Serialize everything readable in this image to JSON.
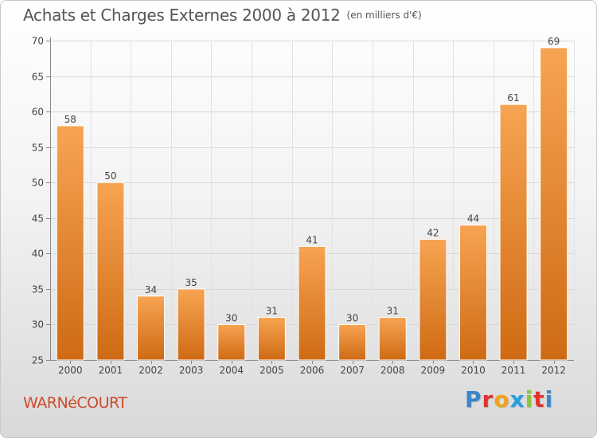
{
  "chart_data": {
    "type": "bar",
    "title": "Achats et Charges Externes 2000 à 2012",
    "unit_label": "(en milliers d'€)",
    "categories": [
      "2000",
      "2001",
      "2002",
      "2003",
      "2004",
      "2005",
      "2006",
      "2007",
      "2008",
      "2009",
      "2010",
      "2011",
      "2012"
    ],
    "values": [
      58,
      50,
      34,
      35,
      30,
      31,
      41,
      30,
      31,
      42,
      44,
      61,
      69
    ],
    "ylim": [
      25,
      70
    ],
    "yticks": [
      25,
      30,
      35,
      40,
      45,
      50,
      55,
      60,
      65,
      70
    ],
    "xlabel": "",
    "ylabel": "",
    "grid": true,
    "bar_color": "#f08c2e"
  },
  "footer": {
    "town": "WARNéCOURT",
    "brand_letters": [
      {
        "ch": "P",
        "color": "#3a86c8"
      },
      {
        "ch": "r",
        "color": "#e0342c"
      },
      {
        "ch": "o",
        "color": "#f0a21e"
      },
      {
        "ch": "x",
        "color": "#2a9de0"
      },
      {
        "ch": "i",
        "color": "#8cc63e"
      },
      {
        "ch": "t",
        "color": "#e0342c"
      },
      {
        "ch": "i",
        "color": "#3a86c8"
      }
    ]
  }
}
